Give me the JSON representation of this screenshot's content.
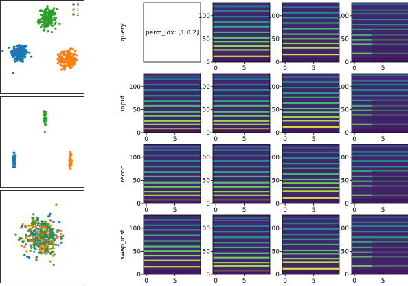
{
  "chart_data": [
    {
      "type": "scatter",
      "panel": "scatter-top",
      "legend": [
        "0",
        "1",
        "2"
      ],
      "legend_position": "top-right",
      "axes_visible": false,
      "series": [
        {
          "name": "0",
          "color": "#1f77b4",
          "center": [
            -8,
            -2
          ],
          "spread": 1.5,
          "count": 180
        },
        {
          "name": "1",
          "color": "#ff7f0e",
          "center": [
            9,
            -4
          ],
          "spread": 1.4,
          "count": 180
        },
        {
          "name": "2",
          "color": "#2ca02c",
          "center": [
            2,
            9
          ],
          "spread": 1.5,
          "count": 180
        }
      ]
    },
    {
      "type": "scatter",
      "panel": "scatter-middle",
      "axes_visible": false,
      "series": [
        {
          "name": "0",
          "color": "#1f77b4",
          "center": [
            -10,
            -6
          ],
          "spread": [
            0.2,
            1.2
          ],
          "count": 40
        },
        {
          "name": "1",
          "color": "#ff7f0e",
          "center": [
            10,
            -6
          ],
          "spread": [
            0.2,
            1.4
          ],
          "count": 40
        },
        {
          "name": "2",
          "color": "#2ca02c",
          "center": [
            1,
            8
          ],
          "spread": [
            0.2,
            1.2
          ],
          "count": 40
        }
      ]
    },
    {
      "type": "scatter",
      "panel": "scatter-bottom",
      "axes_visible": false,
      "series": [
        {
          "name": "0",
          "color": "#1f77b4",
          "center": [
            0,
            0
          ],
          "spread": 3.0,
          "count": 150
        },
        {
          "name": "1",
          "color": "#ff7f0e",
          "center": [
            0,
            0
          ],
          "spread": 3.0,
          "count": 150
        },
        {
          "name": "2",
          "color": "#2ca02c",
          "center": [
            0,
            0
          ],
          "spread": 3.0,
          "count": 150
        }
      ]
    },
    {
      "type": "heatmap",
      "grid": "spectrogram-grid",
      "rows": [
        "query",
        "input",
        "recon",
        "swap_inst"
      ],
      "columns": 4,
      "colormap": "viridis",
      "x_ticks": [
        0,
        5
      ],
      "y_ticks": [
        0,
        50,
        100
      ],
      "xlim": [
        0,
        10
      ],
      "ylim": [
        0,
        128
      ],
      "query_text": "perm_idx: [1 0 2]",
      "band_sets": [
        [
          8,
          18,
          25,
          36,
          45,
          58,
          68,
          80,
          92,
          104,
          116,
          122
        ],
        [
          12,
          26,
          34,
          44,
          52,
          64,
          76,
          86,
          98,
          110,
          120
        ],
        [
          16,
          30,
          40,
          50,
          60,
          72,
          84,
          96,
          106,
          118
        ],
        [
          18,
          38,
          48,
          58,
          70,
          80,
          92,
          104,
          112,
          124
        ]
      ],
      "cells": [
        [
          null,
          1,
          2,
          3
        ],
        [
          0,
          0,
          1,
          3
        ],
        [
          0,
          0,
          1,
          3
        ],
        [
          2,
          0,
          1,
          3
        ]
      ]
    }
  ]
}
